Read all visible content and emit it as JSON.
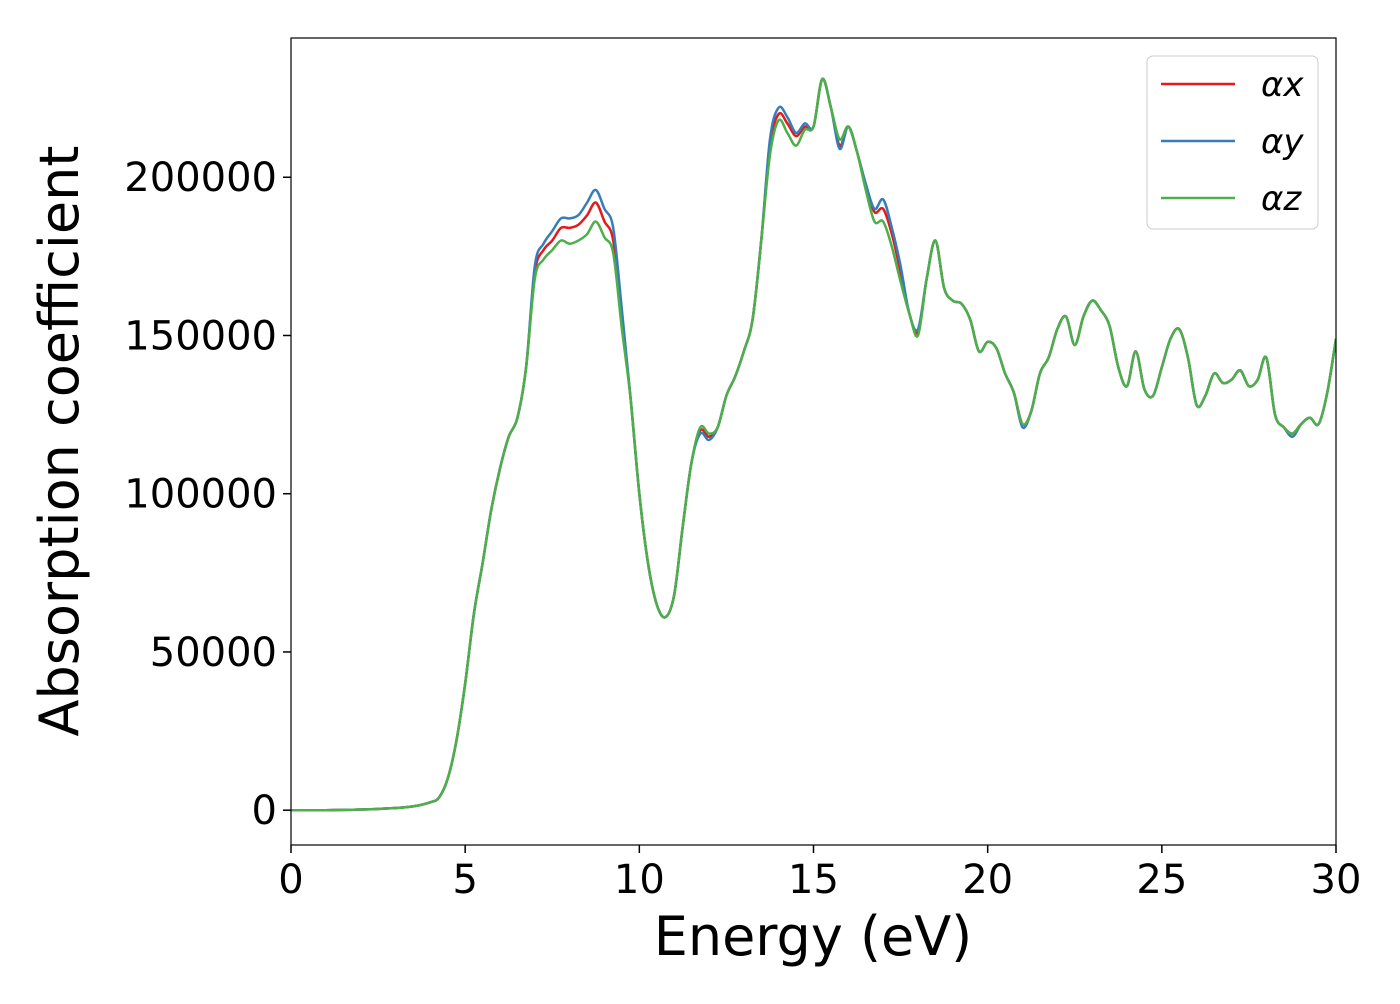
{
  "chart_data": {
    "type": "line",
    "xlabel": "Energy (eV)",
    "ylabel": "Absorption coefficient",
    "x": [
      0,
      1,
      2,
      3,
      3.5,
      4,
      4.25,
      4.5,
      4.75,
      5,
      5.25,
      5.5,
      5.75,
      6,
      6.25,
      6.5,
      6.75,
      7,
      7.25,
      7.5,
      7.75,
      8,
      8.25,
      8.5,
      8.75,
      9,
      9.25,
      9.5,
      9.75,
      10,
      10.25,
      10.5,
      10.75,
      11,
      11.25,
      11.5,
      11.75,
      12,
      12.25,
      12.5,
      12.75,
      13,
      13.25,
      13.5,
      13.75,
      14,
      14.25,
      14.5,
      14.75,
      15,
      15.25,
      15.5,
      15.75,
      16,
      16.25,
      16.5,
      16.75,
      17,
      17.25,
      17.5,
      17.75,
      18,
      18.25,
      18.5,
      18.75,
      19,
      19.25,
      19.5,
      19.75,
      20,
      20.25,
      20.5,
      20.75,
      21,
      21.25,
      21.5,
      21.75,
      22,
      22.25,
      22.5,
      22.75,
      23,
      23.25,
      23.5,
      23.75,
      24,
      24.25,
      24.5,
      24.75,
      25,
      25.25,
      25.5,
      25.75,
      26,
      26.25,
      26.5,
      26.75,
      27,
      27.25,
      27.5,
      27.75,
      28,
      28.25,
      28.5,
      28.75,
      29,
      29.25,
      29.5,
      29.75,
      30
    ],
    "series": [
      {
        "name": "αx",
        "color": "#e41a1c",
        "values": [
          0,
          0,
          200,
          700,
          1200,
          2500,
          4000,
          10000,
          22000,
          40000,
          62000,
          78000,
          95000,
          108000,
          118000,
          124000,
          140000,
          170000,
          177000,
          180000,
          184000,
          184000,
          185000,
          188000,
          192000,
          186000,
          180000,
          155000,
          130000,
          100000,
          78000,
          65000,
          61000,
          68000,
          90000,
          110000,
          120000,
          118000,
          121000,
          131000,
          137000,
          145000,
          155000,
          180000,
          210000,
          220000,
          217000,
          213000,
          216000,
          216000,
          231000,
          222000,
          210000,
          216000,
          208000,
          197000,
          189000,
          190000,
          182000,
          170000,
          157000,
          151000,
          168000,
          180000,
          165000,
          161000,
          160000,
          155000,
          145000,
          148000,
          146000,
          138000,
          132000,
          122000,
          126000,
          138000,
          143000,
          152000,
          156000,
          147000,
          156000,
          161000,
          158000,
          153000,
          140000,
          134000,
          145000,
          133000,
          131000,
          140000,
          149000,
          152000,
          143000,
          128000,
          131000,
          138000,
          135000,
          136000,
          139000,
          134000,
          136000,
          143000,
          125000,
          121000,
          119000,
          122000,
          124000,
          122000,
          132000,
          149000
        ]
      },
      {
        "name": "αy",
        "color": "#377eb8",
        "values": [
          0,
          0,
          200,
          700,
          1200,
          2500,
          4000,
          10000,
          22000,
          40000,
          62000,
          78000,
          95000,
          108000,
          118000,
          124000,
          140000,
          172000,
          179000,
          183000,
          187000,
          187000,
          188000,
          192000,
          196000,
          190000,
          184000,
          158000,
          130000,
          100000,
          78000,
          65000,
          61000,
          68000,
          90000,
          110000,
          119000,
          117000,
          121000,
          131000,
          137000,
          145000,
          155000,
          180000,
          212000,
          222000,
          219000,
          214000,
          217000,
          216000,
          231000,
          222000,
          209000,
          216000,
          208000,
          198000,
          190000,
          193000,
          184000,
          172000,
          157000,
          152000,
          168000,
          180000,
          165000,
          161000,
          160000,
          155000,
          145000,
          148000,
          146000,
          138000,
          132000,
          121000,
          126000,
          138000,
          143000,
          152000,
          156000,
          147000,
          156000,
          161000,
          158000,
          153000,
          140000,
          134000,
          145000,
          133000,
          131000,
          140000,
          149000,
          152000,
          143000,
          128000,
          131000,
          138000,
          135000,
          136000,
          139000,
          134000,
          136000,
          143000,
          125000,
          121000,
          118000,
          122000,
          124000,
          122000,
          132000,
          149000
        ]
      },
      {
        "name": "αz",
        "color": "#4daf4a",
        "values": [
          0,
          0,
          200,
          700,
          1200,
          2500,
          4000,
          10000,
          22000,
          40000,
          62000,
          78000,
          95000,
          108000,
          118000,
          124000,
          140000,
          168000,
          174000,
          177000,
          180000,
          179000,
          180000,
          182000,
          186000,
          181000,
          176000,
          152000,
          130000,
          100000,
          78000,
          65000,
          61000,
          68000,
          90000,
          110000,
          121000,
          119000,
          121000,
          131000,
          137000,
          145000,
          155000,
          180000,
          207000,
          218000,
          214000,
          210000,
          215000,
          216000,
          231000,
          222000,
          212000,
          216000,
          208000,
          196000,
          186000,
          186000,
          178000,
          167000,
          157000,
          150000,
          168000,
          180000,
          165000,
          161000,
          160000,
          155000,
          145000,
          148000,
          146000,
          138000,
          132000,
          122000,
          126000,
          138000,
          143000,
          152000,
          156000,
          147000,
          156000,
          161000,
          158000,
          153000,
          140000,
          134000,
          145000,
          133000,
          131000,
          140000,
          149000,
          152000,
          143000,
          128000,
          131000,
          138000,
          135000,
          136000,
          139000,
          134000,
          136000,
          143000,
          125000,
          121000,
          119000,
          122000,
          124000,
          122000,
          132000,
          149000
        ]
      }
    ],
    "xlim": [
      0,
      30
    ],
    "xticks": [
      0,
      5,
      10,
      15,
      20,
      25,
      30
    ],
    "ylim": [
      -11000,
      244000
    ],
    "yticks": [
      0,
      50000,
      100000,
      150000,
      200000
    ],
    "legend": "upper right"
  }
}
